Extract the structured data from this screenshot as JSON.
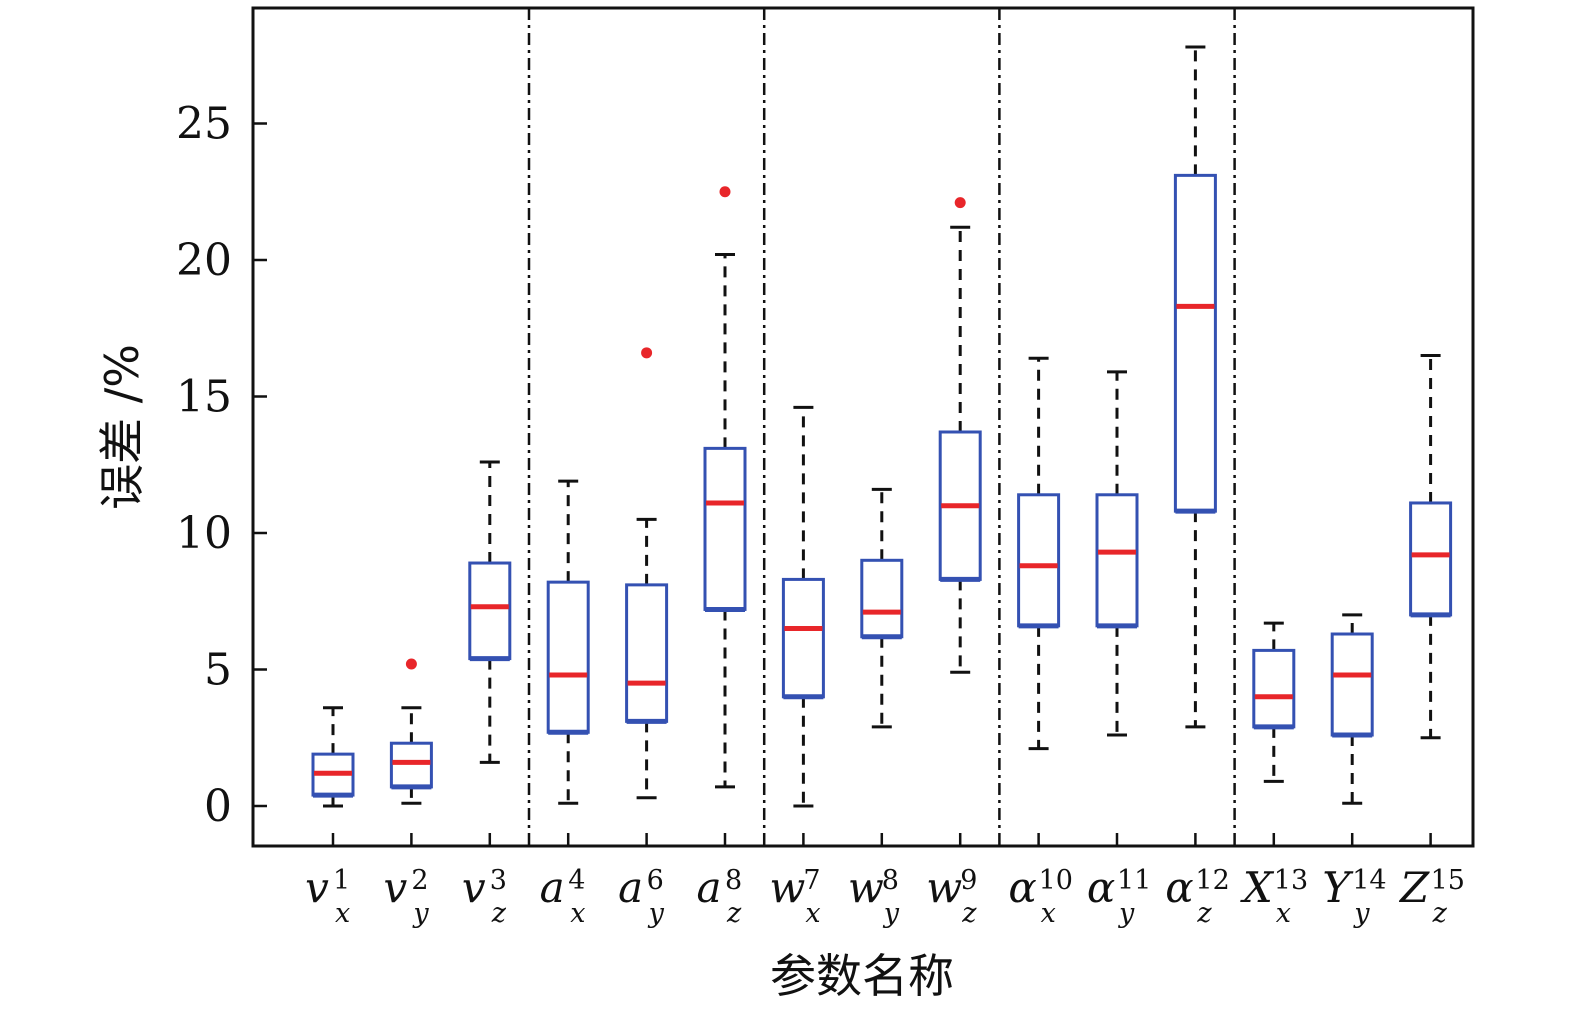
{
  "chart_data": {
    "type": "box",
    "xlabel": "参数名称",
    "ylabel": "误差 /%",
    "ylim": [
      -1.5,
      29
    ],
    "yticks": [
      0,
      5,
      10,
      15,
      20,
      25
    ],
    "ytick_labels": [
      "0",
      "5",
      "10",
      "15",
      "20",
      "25"
    ],
    "grid": false,
    "colors": {
      "box": "#3451b2",
      "median": "#e8262a",
      "whisker": "#111111",
      "outlier": "#e8262a",
      "separator": "#111111"
    },
    "groups": [
      {
        "members": [
          0,
          1,
          2
        ]
      },
      {
        "members": [
          3,
          4,
          5
        ]
      },
      {
        "members": [
          6,
          7,
          8
        ]
      },
      {
        "members": [
          9,
          10,
          11
        ]
      },
      {
        "members": [
          12,
          13,
          14
        ]
      }
    ],
    "categories": [
      {
        "base": "v",
        "sup": "1",
        "sub": "x",
        "whisker_low": 0.0,
        "q1": 0.4,
        "median": 1.2,
        "q3": 1.9,
        "whisker_high": 3.6,
        "outliers": []
      },
      {
        "base": "v",
        "sup": "2",
        "sub": "y",
        "whisker_low": 0.1,
        "q1": 0.7,
        "median": 1.6,
        "q3": 2.3,
        "whisker_high": 3.6,
        "outliers": [
          5.2
        ]
      },
      {
        "base": "v",
        "sup": "3",
        "sub": "z",
        "whisker_low": 1.6,
        "q1": 5.4,
        "median": 7.3,
        "q3": 8.9,
        "whisker_high": 12.6,
        "outliers": []
      },
      {
        "base": "a",
        "sup": "4",
        "sub": "x",
        "whisker_low": 0.1,
        "q1": 2.7,
        "median": 4.8,
        "q3": 8.2,
        "whisker_high": 11.9,
        "outliers": []
      },
      {
        "base": "a",
        "sup": "6",
        "sub": "y",
        "whisker_low": 0.3,
        "q1": 3.1,
        "median": 4.5,
        "q3": 8.1,
        "whisker_high": 10.5,
        "outliers": [
          16.6
        ]
      },
      {
        "base": "a",
        "sup": "8",
        "sub": "z",
        "whisker_low": 0.7,
        "q1": 7.2,
        "median": 11.1,
        "q3": 13.1,
        "whisker_high": 20.2,
        "outliers": [
          22.5
        ]
      },
      {
        "base": "w",
        "sup": "7",
        "sub": "x",
        "whisker_low": 0.0,
        "q1": 4.0,
        "median": 6.5,
        "q3": 8.3,
        "whisker_high": 14.6,
        "outliers": []
      },
      {
        "base": "w",
        "sup": "8",
        "sub": "y",
        "whisker_low": 2.9,
        "q1": 6.2,
        "median": 7.1,
        "q3": 9.0,
        "whisker_high": 11.6,
        "outliers": []
      },
      {
        "base": "w",
        "sup": "9",
        "sub": "z",
        "whisker_low": 4.9,
        "q1": 8.3,
        "median": 11.0,
        "q3": 13.7,
        "whisker_high": 21.2,
        "outliers": [
          22.1
        ]
      },
      {
        "base": "α",
        "sup": "10",
        "sub": "x",
        "whisker_low": 2.1,
        "q1": 6.6,
        "median": 8.8,
        "q3": 11.4,
        "whisker_high": 16.4,
        "outliers": []
      },
      {
        "base": "α",
        "sup": "11",
        "sub": "y",
        "whisker_low": 2.6,
        "q1": 6.6,
        "median": 9.3,
        "q3": 11.4,
        "whisker_high": 15.9,
        "outliers": []
      },
      {
        "base": "α",
        "sup": "12",
        "sub": "z",
        "whisker_low": 2.9,
        "q1": 10.8,
        "median": 18.3,
        "q3": 23.1,
        "whisker_high": 27.8,
        "outliers": []
      },
      {
        "base": "X",
        "sup": "13",
        "sub": "x",
        "whisker_low": 0.9,
        "q1": 2.9,
        "median": 4.0,
        "q3": 5.7,
        "whisker_high": 6.7,
        "outliers": []
      },
      {
        "base": "Y",
        "sup": "14",
        "sub": "y",
        "whisker_low": 0.1,
        "q1": 2.6,
        "median": 4.8,
        "q3": 6.3,
        "whisker_high": 7.0,
        "outliers": []
      },
      {
        "base": "Z",
        "sup": "15",
        "sub": "z",
        "whisker_low": 2.5,
        "q1": 7.0,
        "median": 9.2,
        "q3": 11.1,
        "whisker_high": 16.5,
        "outliers": []
      }
    ]
  }
}
